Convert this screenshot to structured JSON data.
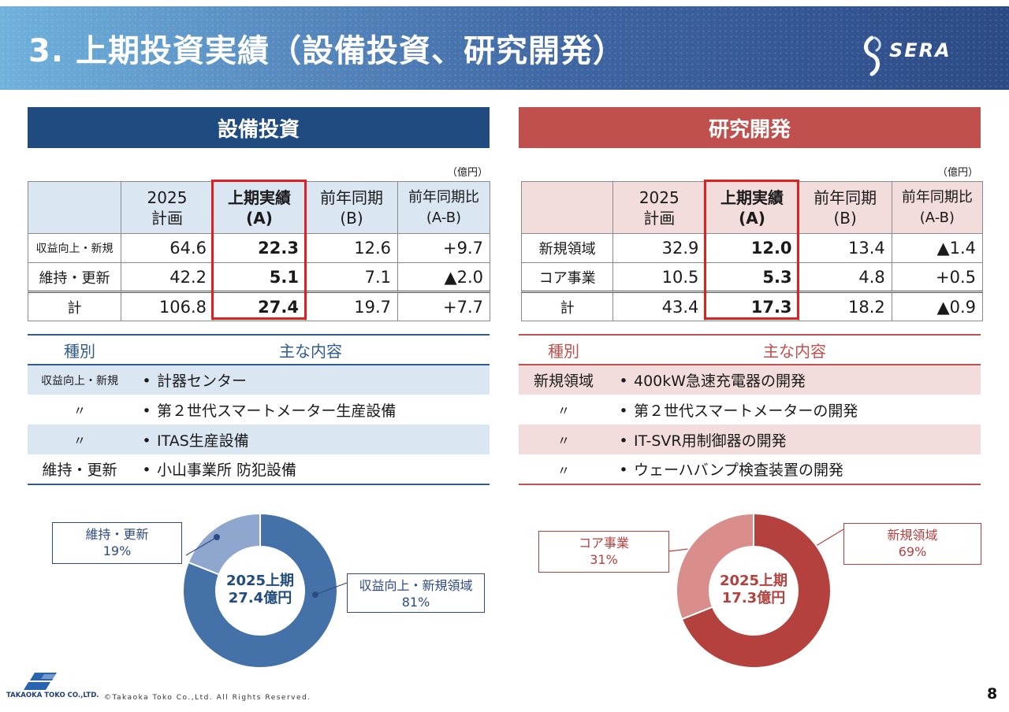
{
  "header": {
    "title": "3. 上期投資実績（設備投資、研究開発）",
    "logo_text": "SERA"
  },
  "capex": {
    "banner": "設備投資",
    "unit": "（億円）",
    "headers": [
      {
        "l1": "",
        "l2": ""
      },
      {
        "l1": "2025",
        "l2": "計画"
      },
      {
        "l1": "上期実績",
        "l2": "(A)"
      },
      {
        "l1": "前年同期",
        "l2": "(B)"
      },
      {
        "l1": "前年同期比",
        "l2": "(A-B)"
      }
    ],
    "rows": [
      {
        "label": "収益向上・新規",
        "plan": "64.6",
        "actual": "22.3",
        "prev": "12.6",
        "diff": "+9.7"
      },
      {
        "label": "維持・更新",
        "plan": "42.2",
        "actual": "5.1",
        "prev": "7.1",
        "diff": "▲2.0"
      },
      {
        "label": "計",
        "plan": "106.8",
        "actual": "27.4",
        "prev": "19.7",
        "diff": "+7.7"
      }
    ],
    "detail": {
      "header": {
        "category": "種別",
        "content": "主な内容"
      },
      "rows": [
        {
          "category": "収益向上・新規",
          "item": "計器センター"
        },
        {
          "category": "〃",
          "item": "第２世代スマートメーター生産設備"
        },
        {
          "category": "〃",
          "item": "ITAS生産設備"
        },
        {
          "category": "維持・更新",
          "item": "小山事業所 防犯設備"
        }
      ]
    },
    "chart": {
      "center_l1": "2025上期",
      "center_l2": "27.4億円",
      "slices": [
        {
          "name": "収益向上・新規領域",
          "pct_label": "81%",
          "value": 81,
          "color": "#4472a8"
        },
        {
          "name": "維持・更新",
          "pct_label": "19%",
          "value": 19,
          "color": "#8fa6cf"
        }
      ]
    }
  },
  "rnd": {
    "banner": "研究開発",
    "unit": "（億円）",
    "headers": [
      {
        "l1": "",
        "l2": ""
      },
      {
        "l1": "2025",
        "l2": "計画"
      },
      {
        "l1": "上期実績",
        "l2": "(A)"
      },
      {
        "l1": "前年同期",
        "l2": "(B)"
      },
      {
        "l1": "前年同期比",
        "l2": "(A-B)"
      }
    ],
    "rows": [
      {
        "label": "新規領域",
        "plan": "32.9",
        "actual": "12.0",
        "prev": "13.4",
        "diff": "▲1.4"
      },
      {
        "label": "コア事業",
        "plan": "10.5",
        "actual": "5.3",
        "prev": "4.8",
        "diff": "+0.5"
      },
      {
        "label": "計",
        "plan": "43.4",
        "actual": "17.3",
        "prev": "18.2",
        "diff": "▲0.9"
      }
    ],
    "detail": {
      "header": {
        "category": "種別",
        "content": "主な内容"
      },
      "rows": [
        {
          "category": "新規領域",
          "item": "400kW急速充電器の開発"
        },
        {
          "category": "〃",
          "item": "第２世代スマートメーターの開発"
        },
        {
          "category": "〃",
          "item": "IT-SVR用制御器の開発"
        },
        {
          "category": "〃",
          "item": "ウェーハバンプ検査装置の開発"
        }
      ]
    },
    "chart": {
      "center_l1": "2025上期",
      "center_l2": "17.3億円",
      "slices": [
        {
          "name": "新規領域",
          "pct_label": "69%",
          "value": 69,
          "color": "#b5413e"
        },
        {
          "name": "コア事業",
          "pct_label": "31%",
          "value": 31,
          "color": "#d98e8b"
        }
      ]
    }
  },
  "chart_data": [
    {
      "type": "pie",
      "categories": [
        "収益向上・新規領域",
        "維持・更新"
      ],
      "values": [
        81,
        19
      ]
    },
    {
      "type": "pie",
      "categories": [
        "新規領域",
        "コア事業"
      ],
      "values": [
        69,
        31
      ]
    }
  ],
  "footer": {
    "company": "TAKAOKA TOKO CO.,LTD.",
    "copyright": "©Takaoka Toko Co.,Ltd. All Rights Reserved.",
    "page": "8"
  }
}
